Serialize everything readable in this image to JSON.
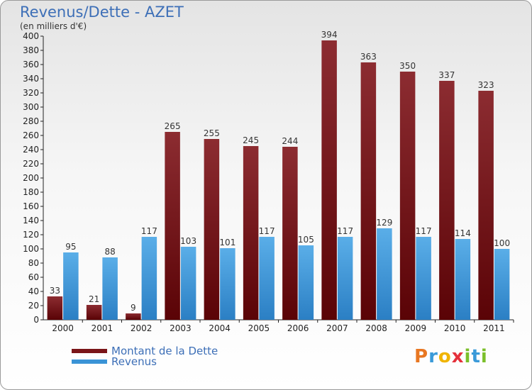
{
  "colors": {
    "dette": "#7a1519",
    "revenus": "#3a93d6",
    "accent": "#3d6fb7"
  },
  "legend": [
    {
      "label": "Montant de la Dette",
      "color": "#7a1519"
    },
    {
      "label": "Revenus",
      "color": "#3a93d6"
    }
  ],
  "logo": {
    "text": "Proxiti",
    "letters": [
      "P",
      "r",
      "o",
      "x",
      "i",
      "t",
      "i"
    ],
    "colors": [
      "#e87722",
      "#3a9ad9",
      "#f0b400",
      "#e5313b",
      "#7bbf2a",
      "#3a9ad9",
      "#7bbf2a"
    ]
  },
  "chart_data": {
    "type": "bar",
    "title": "Revenus/Dette - AZET",
    "subtitle": "(en milliers d'€)",
    "categories": [
      "2000",
      "2001",
      "2002",
      "2003",
      "2004",
      "2005",
      "2006",
      "2007",
      "2008",
      "2009",
      "2010",
      "2011"
    ],
    "series": [
      {
        "name": "Montant de la Dette",
        "values": [
          33,
          21,
          9,
          265,
          255,
          245,
          244,
          394,
          363,
          350,
          337,
          323
        ]
      },
      {
        "name": "Revenus",
        "values": [
          95,
          88,
          117,
          103,
          101,
          117,
          105,
          117,
          129,
          117,
          114,
          100
        ]
      }
    ],
    "ylim": [
      0,
      400
    ],
    "ytick_step": 20,
    "grid": false,
    "legend_position": "bottom-left"
  }
}
